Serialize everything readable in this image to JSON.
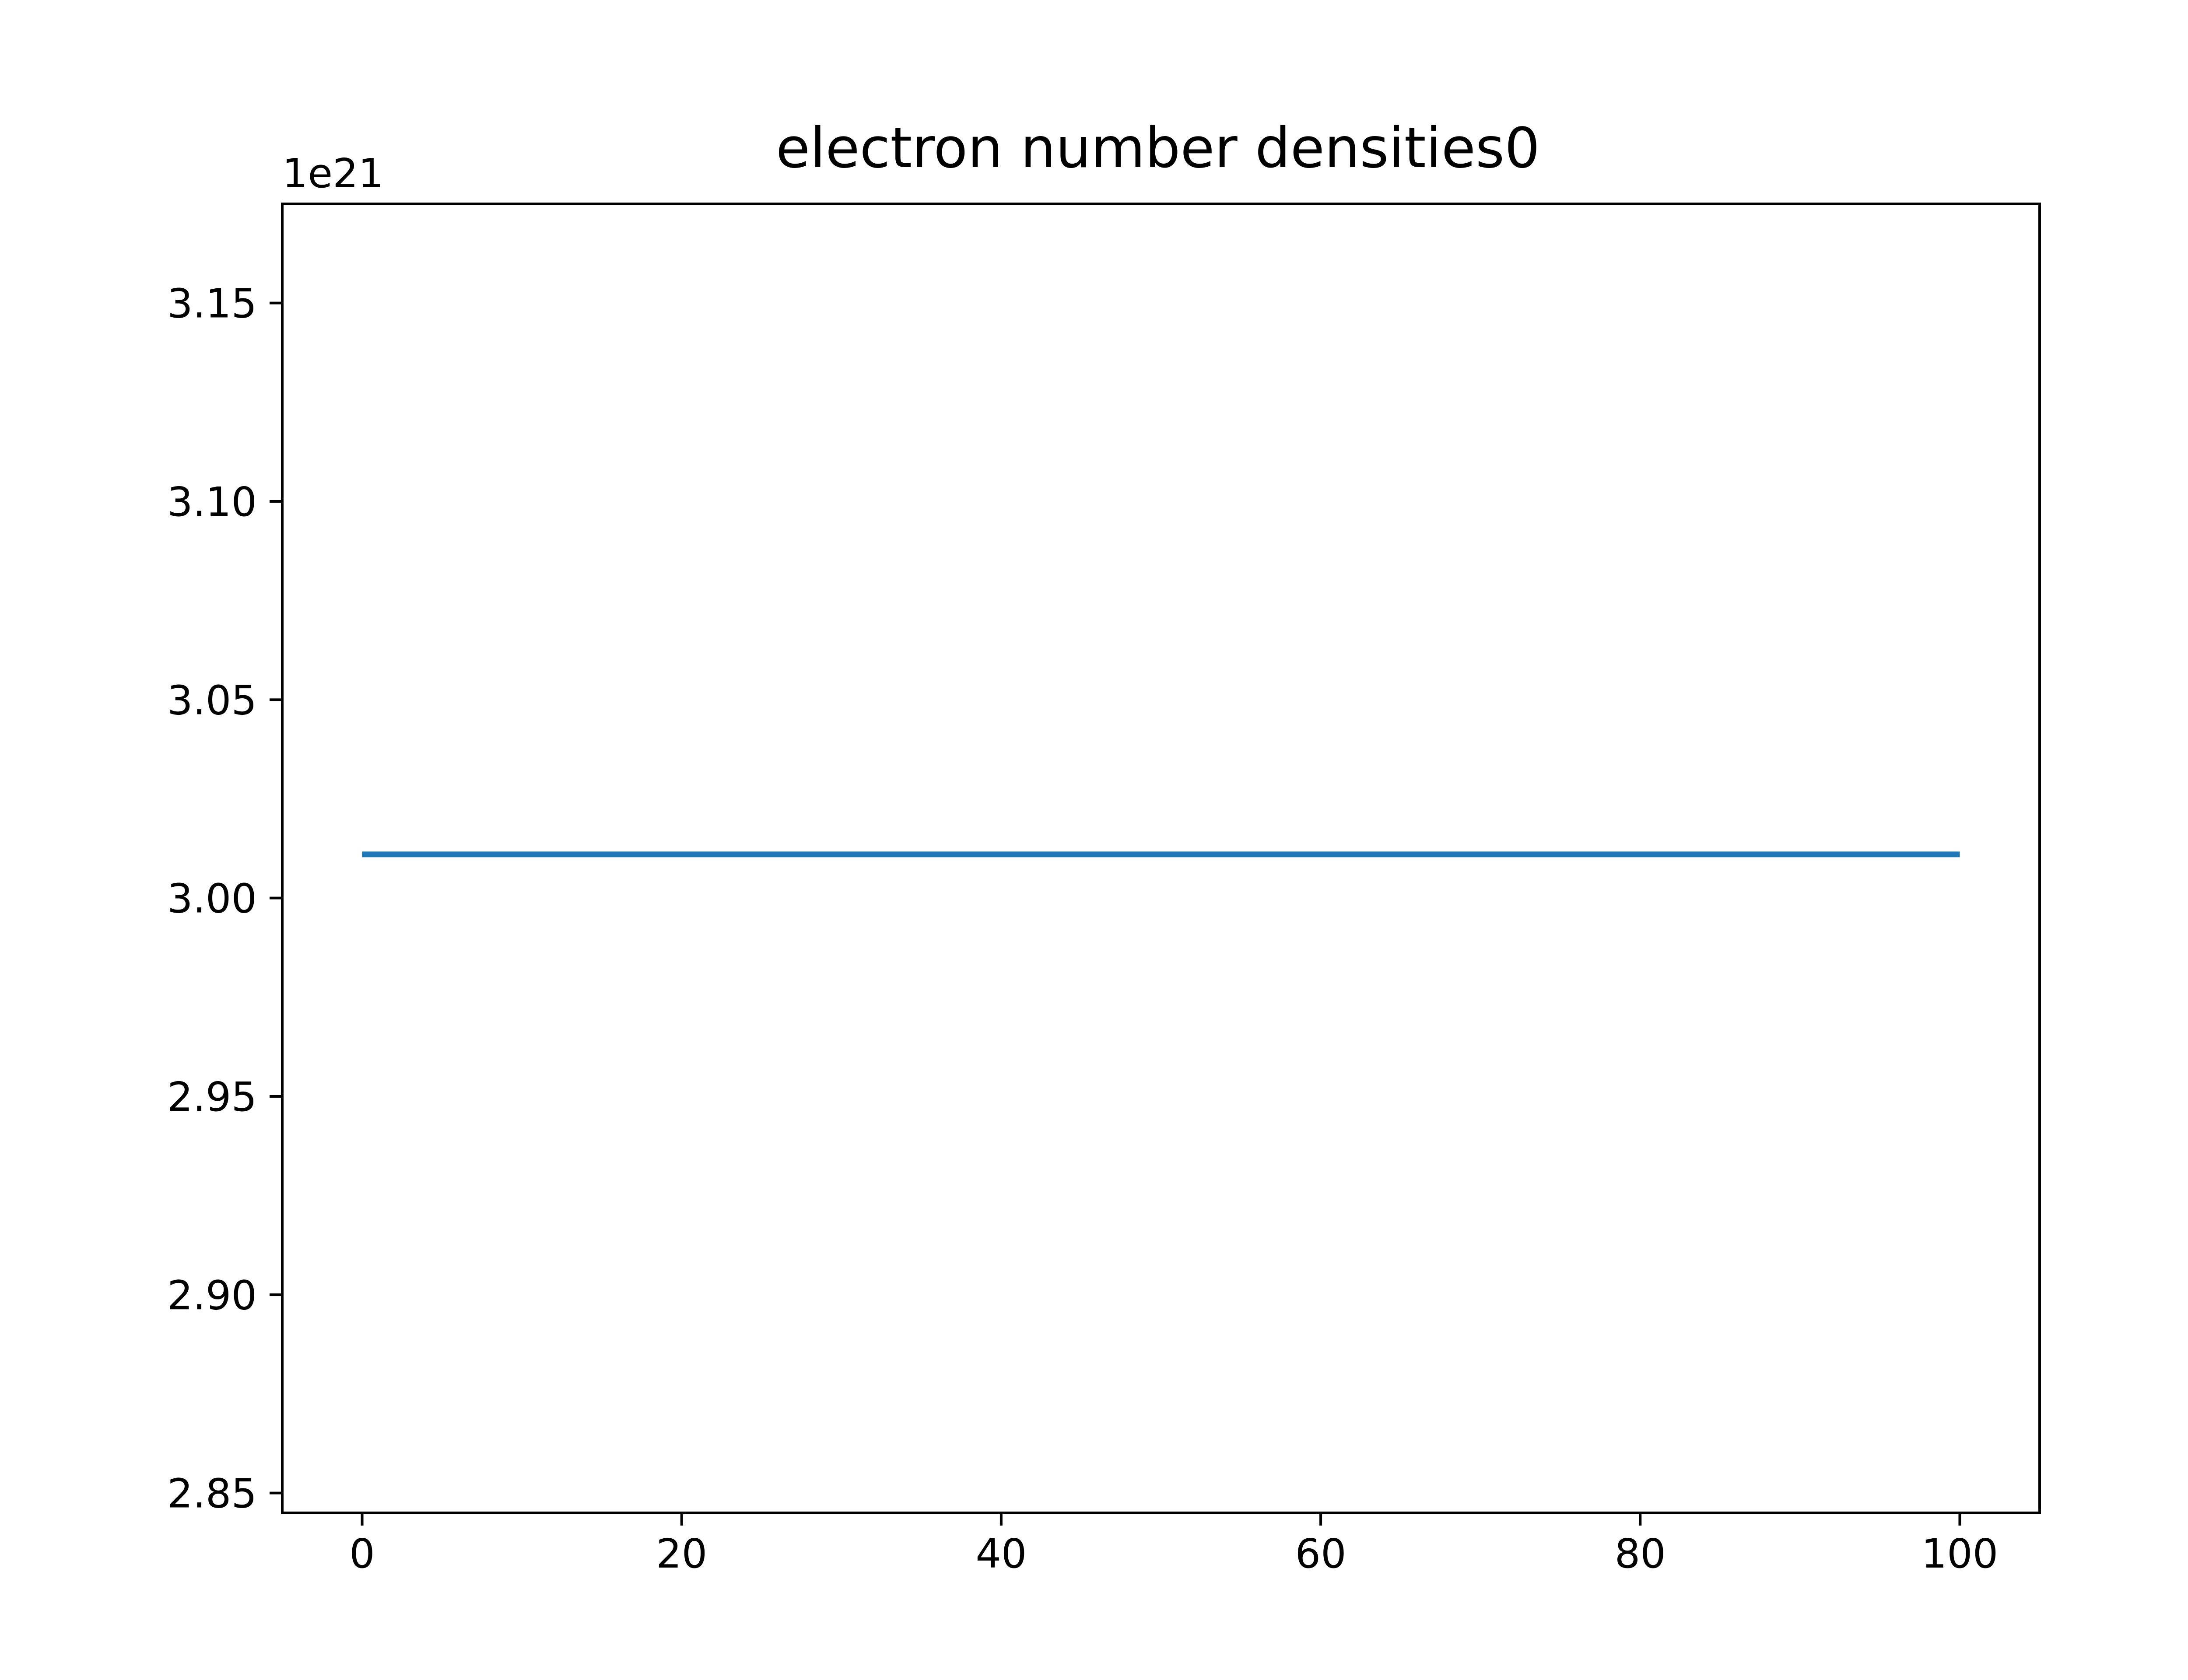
{
  "chart_data": {
    "type": "line",
    "title": "electron number densities0",
    "xlabel": "",
    "ylabel": "",
    "y_offset_label": "1e21",
    "xlim": [
      -5,
      105
    ],
    "ylim": [
      2.845,
      3.175
    ],
    "x_ticks": [
      0,
      20,
      40,
      60,
      80,
      100
    ],
    "x_tick_labels": [
      "0",
      "20",
      "40",
      "60",
      "80",
      "100"
    ],
    "y_ticks": [
      2.85,
      2.9,
      2.95,
      3.0,
      3.05,
      3.1,
      3.15
    ],
    "y_tick_labels": [
      "2.85",
      "2.90",
      "2.95",
      "3.00",
      "3.05",
      "3.10",
      "3.15"
    ],
    "grid": false,
    "legend": "none",
    "series": [
      {
        "color": "#1f77b4",
        "x": [
          0,
          100
        ],
        "y": [
          3.011,
          3.011
        ]
      }
    ]
  }
}
